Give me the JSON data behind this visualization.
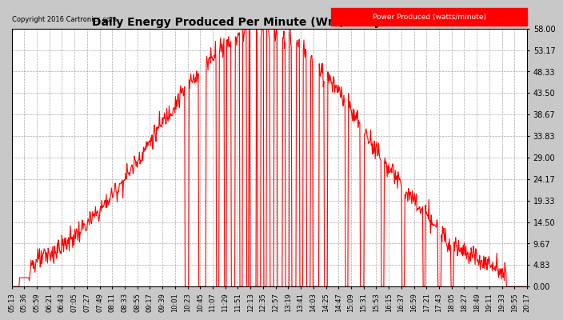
{
  "title": "Daily Energy Produced Per Minute (Wm) Thu Jun 2 20:23",
  "copyright": "Copyright 2016 Cartronics.com",
  "legend_label": "Power Produced (watts/minute)",
  "legend_bg": "#FF0000",
  "legend_text_color": "#FFFFFF",
  "line_color": "#FF0000",
  "bg_color": "#C8C8C8",
  "plot_bg_color": "#FFFFFF",
  "grid_color": "#AAAAAA",
  "title_color": "#000000",
  "ymin": 0.0,
  "ymax": 58.0,
  "yticks": [
    0.0,
    4.83,
    9.67,
    14.5,
    19.33,
    24.17,
    29.0,
    33.83,
    38.67,
    43.5,
    48.33,
    53.17,
    58.0
  ],
  "xtick_labels": [
    "05:13",
    "05:36",
    "05:59",
    "06:21",
    "06:43",
    "07:05",
    "07:27",
    "07:49",
    "08:11",
    "08:33",
    "08:55",
    "09:17",
    "09:39",
    "10:01",
    "10:23",
    "10:45",
    "11:07",
    "11:29",
    "11:51",
    "12:13",
    "12:35",
    "12:57",
    "13:19",
    "13:41",
    "14:03",
    "14:25",
    "14:47",
    "15:09",
    "15:31",
    "15:53",
    "16:15",
    "16:37",
    "16:59",
    "17:21",
    "17:43",
    "18:05",
    "18:27",
    "18:49",
    "19:11",
    "19:33",
    "19:55",
    "20:17"
  ]
}
